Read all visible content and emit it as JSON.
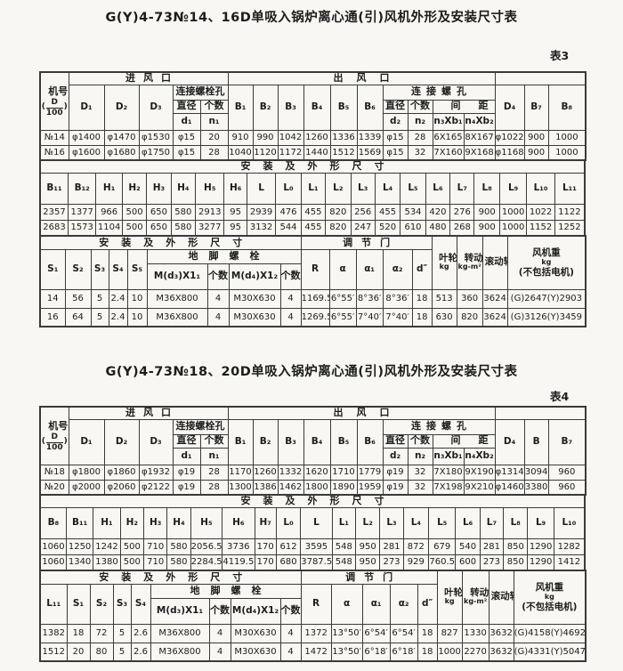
{
  "page": {
    "bg_color": "#f8f7f4",
    "ink_color": "#1d1d1d",
    "border_color": "#3a3a3a"
  },
  "t1": {
    "title": "G(Y)4-73№14、16D单吸入锅炉离心通(引)风机外形及安装尺寸表",
    "label": "表3",
    "a": {
      "jihao": "机号",
      "frac_open": "(",
      "frac_top": "D",
      "frac_bot": "100",
      "frac_close": ")",
      "g_inlet": "进风口",
      "g_outlet": "出风口",
      "g_bolt_inlet": "连接螺栓孔",
      "g_bolt_outlet": "连接螺孔",
      "lbl_dia1": "直径",
      "lbl_cnt1": "个数",
      "lbl_dia2": "直径",
      "lbl_cnt2": "个数",
      "lbl_spacing": "间距",
      "h": [
        "D₁",
        "D₂",
        "D₃",
        "B₁",
        "B₂",
        "B₃",
        "B₄",
        "B₅",
        "B₆",
        "D₄",
        "B₇",
        "B₈"
      ],
      "sub": [
        "d₁",
        "n₁",
        "d₂",
        "n₂",
        "n₃Xb₁",
        "n₄Xb₂"
      ],
      "rows": [
        [
          "№14",
          "φ1400",
          "φ1470",
          "φ1530",
          "φ15",
          "20",
          "910",
          "990",
          "1042",
          "1260",
          "1336",
          "1339",
          "φ15",
          "28",
          "6X165",
          "8X167",
          "φ1022",
          "900",
          "1000"
        ],
        [
          "№16",
          "φ1600",
          "φ1680",
          "φ1750",
          "φ15",
          "28",
          "1040",
          "1120",
          "1172",
          "1440",
          "1512",
          "1569",
          "φ15",
          "32",
          "7X160",
          "9X168",
          "φ1168",
          "900",
          "1000"
        ]
      ]
    },
    "b": {
      "title": "安装及外形尺寸",
      "h": [
        "B₁₁",
        "B₁₂",
        "H₁",
        "H₂",
        "H₃",
        "H₄",
        "H₅",
        "H₆",
        "L",
        "L₀",
        "L₁",
        "L₂",
        "L₃",
        "L₄",
        "L₅",
        "L₆",
        "L₇",
        "L₈",
        "L₉",
        "L₁₀",
        "L₁₁"
      ],
      "rows": [
        [
          "2357",
          "1377",
          "966",
          "500",
          "650",
          "580",
          "2913",
          "95",
          "2939",
          "476",
          "455",
          "820",
          "256",
          "455",
          "534",
          "420",
          "276",
          "900",
          "1000",
          "1022",
          "1122"
        ],
        [
          "2683",
          "1573",
          "1104",
          "500",
          "650",
          "580",
          "3277",
          "95",
          "3132",
          "544",
          "455",
          "820",
          "247",
          "520",
          "610",
          "480",
          "268",
          "900",
          "1000",
          "1152",
          "1252"
        ]
      ]
    },
    "c": {
      "g_install": "安装及外形尺寸",
      "g_damper": "调节门",
      "g_bolt": "地脚螺栓",
      "s_h": [
        "S₁",
        "S₂",
        "S₃",
        "S₄",
        "S₅"
      ],
      "bolt_h": [
        "M(d₃)X1₁",
        "个数",
        "M(d₄)X1₂",
        "个数"
      ],
      "d_h": [
        "R",
        "α",
        "α₁",
        "α₂",
        "d″"
      ],
      "impeller": "叶轮重",
      "impeller_unit": "kg",
      "inertia": "转动惯量",
      "inertia_unit": "kg-m²",
      "bearing": "滚动轴承型号",
      "fan_w1": "风机重",
      "fan_w2": "kg",
      "fan_w3": "(不包括电机)",
      "rows": [
        [
          "14",
          "56",
          "5",
          "2.4",
          "10",
          "M36X800",
          "4",
          "M30X630",
          "4",
          "1169.5",
          "6°55′",
          "8°36′",
          "8°36′",
          "18",
          "513",
          "360",
          "3624",
          "(G)2647(Y)2903"
        ],
        [
          "16",
          "64",
          "5",
          "2.4",
          "10",
          "M36X800",
          "4",
          "M30X630",
          "4",
          "1269.5",
          "6°55′",
          "7°40′",
          "7°40′",
          "18",
          "630",
          "820",
          "3624",
          "(G)3126(Y)3459"
        ]
      ]
    }
  },
  "t2": {
    "title": "G(Y)4-73№18、20D单吸入锅炉离心通(引)风机外形及安装尺寸表",
    "label": "表4",
    "a": {
      "jihao": "机号",
      "frac_open": "(",
      "frac_top": "D",
      "frac_bot": "100",
      "frac_close": ")",
      "g_inlet": "进风口",
      "g_outlet": "出风口",
      "g_bolt_inlet": "连接螺栓孔",
      "g_bolt_outlet": "连接螺孔",
      "lbl_dia1": "直径",
      "lbl_cnt1": "个数",
      "lbl_dia2": "直径",
      "lbl_cnt2": "个数",
      "lbl_spacing": "间距",
      "h": [
        "D₁",
        "D₂",
        "D₃",
        "B₁",
        "B₂",
        "B₃",
        "B₄",
        "B₅",
        "B₆",
        "D₄",
        "B",
        "B₇"
      ],
      "sub": [
        "d₁",
        "n₁",
        "d₂",
        "n₂",
        "n₃Xb₁",
        "n₄Xb₂"
      ],
      "rows": [
        [
          "№18",
          "φ1800",
          "φ1860",
          "φ1932",
          "φ19",
          "28",
          "1170",
          "1260",
          "1332",
          "1620",
          "1710",
          "1779",
          "φ19",
          "32",
          "7X180",
          "9X190",
          "φ1314",
          "3094",
          "960"
        ],
        [
          "№20",
          "φ2000",
          "φ2060",
          "φ2122",
          "φ19",
          "28",
          "1300",
          "1386",
          "1462",
          "1800",
          "1890",
          "1959",
          "φ19",
          "32",
          "7X198",
          "9X210",
          "φ1460",
          "3380",
          "960"
        ]
      ]
    },
    "b": {
      "title": "安装及外形尺寸",
      "h": [
        "B₈",
        "B₁₁",
        "H₁",
        "H₂",
        "H₃",
        "H₄",
        "H₅",
        "H₆",
        "H₇",
        "L₀",
        "L",
        "L₁",
        "L₂",
        "L₃",
        "L₄",
        "L₅",
        "L₆",
        "L₇",
        "L₈",
        "L₉",
        "L₁₀"
      ],
      "rows": [
        [
          "1060",
          "1250",
          "1242",
          "500",
          "710",
          "580",
          "2056.5",
          "3736",
          "170",
          "612",
          "3595",
          "548",
          "950",
          "281",
          "872",
          "679",
          "540",
          "281",
          "850",
          "1290",
          "1282"
        ],
        [
          "1060",
          "1340",
          "1380",
          "500",
          "710",
          "580",
          "2284.5",
          "4119.5",
          "170",
          "680",
          "3787.5",
          "548",
          "950",
          "273",
          "929",
          "760.5",
          "600",
          "273",
          "850",
          "1290",
          "1412"
        ]
      ]
    },
    "c": {
      "g_install": "安装及外形尺寸",
      "g_damper": "调节门",
      "g_bolt": "地脚螺栓",
      "s_h": [
        "L₁₁",
        "S₁",
        "S₂",
        "S₃",
        "S₄"
      ],
      "bolt_h": [
        "M(d₃)X1₁",
        "个数",
        "M(d₄)X1₂",
        "个数"
      ],
      "d_h": [
        "R",
        "α",
        "α₁",
        "α₂",
        "d″"
      ],
      "impeller": "叶轮重",
      "impeller_unit": "kg",
      "inertia": "转动惯量",
      "inertia_unit": "kg-m²",
      "bearing": "滚动轴承型号",
      "fan_w1": "风机重",
      "fan_w2": "kg",
      "fan_w3": "(不包括电机)",
      "rows": [
        [
          "1382",
          "18",
          "72",
          "5",
          "2.6",
          "M36X800",
          "4",
          "M30X630",
          "4",
          "1372",
          "13°50′",
          "6°54′",
          "6°54′",
          "18",
          "827",
          "1330",
          "3632",
          "(G)4158(Y)4692"
        ],
        [
          "1512",
          "20",
          "80",
          "5",
          "2.6",
          "M36X800",
          "4",
          "M30X630",
          "4",
          "1472",
          "13°50′",
          "6°18′",
          "6°18′",
          "18",
          "1000",
          "2270",
          "3632",
          "(G)4331(Y)5047"
        ]
      ]
    }
  }
}
